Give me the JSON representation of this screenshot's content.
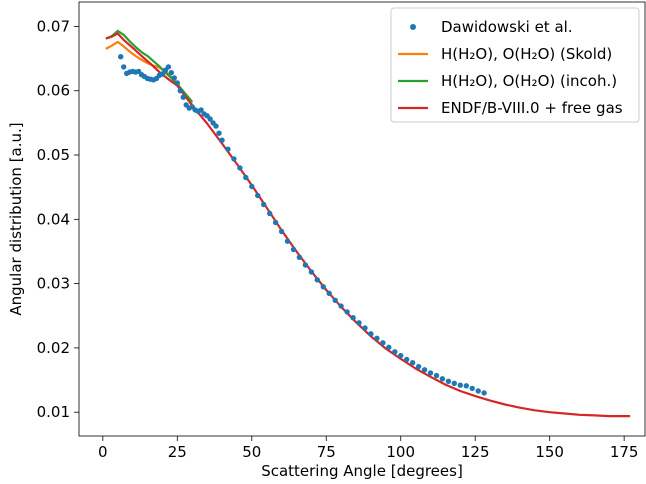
{
  "chart_data": {
    "type": "line",
    "title": "",
    "xlabel": "Scattering Angle [degrees]",
    "ylabel": "Angular distribution [a.u.]",
    "xlim": [
      -8,
      182
    ],
    "ylim": [
      0.0063,
      0.0738
    ],
    "xticks": [
      0,
      25,
      50,
      75,
      100,
      125,
      150,
      175
    ],
    "yticks": [
      0.01,
      0.02,
      0.03,
      0.04,
      0.05,
      0.06,
      0.07
    ],
    "ytick_labels": [
      "0.01",
      "0.02",
      "0.03",
      "0.04",
      "0.05",
      "0.06",
      "0.07"
    ],
    "grid": false,
    "legend_position": "top-right",
    "series": [
      {
        "name": "Dawidowski et al.",
        "style": "scatter",
        "color": "#1f77b4",
        "x": [
          6,
          7,
          8,
          9,
          10,
          11,
          12,
          13,
          14,
          15,
          16,
          17,
          18,
          19,
          20,
          21,
          22,
          23,
          24,
          25,
          26,
          27,
          28,
          29,
          30,
          31,
          32,
          33,
          34,
          35,
          36,
          37,
          38,
          39,
          40,
          42,
          44,
          46,
          48,
          50,
          52,
          54,
          56,
          58,
          60,
          62,
          64,
          66,
          68,
          70,
          72,
          74,
          76,
          78,
          80,
          82,
          84,
          86,
          88,
          90,
          92,
          94,
          96,
          98,
          100,
          102,
          104,
          106,
          108,
          110,
          112,
          114,
          116,
          118,
          120,
          122,
          124,
          126,
          128
        ],
        "y": [
          0.0653,
          0.0637,
          0.0627,
          0.0629,
          0.063,
          0.0629,
          0.063,
          0.0625,
          0.0622,
          0.0619,
          0.0618,
          0.0617,
          0.0619,
          0.0624,
          0.0626,
          0.0632,
          0.0637,
          0.0628,
          0.062,
          0.0612,
          0.06,
          0.059,
          0.0578,
          0.0573,
          0.0575,
          0.057,
          0.0568,
          0.057,
          0.0564,
          0.0561,
          0.0556,
          0.055,
          0.0545,
          0.0534,
          0.0523,
          0.0509,
          0.0494,
          0.048,
          0.0465,
          0.0451,
          0.0437,
          0.0423,
          0.0409,
          0.0395,
          0.0381,
          0.0366,
          0.0353,
          0.0341,
          0.0329,
          0.0318,
          0.0306,
          0.0295,
          0.0285,
          0.0274,
          0.0265,
          0.0256,
          0.0247,
          0.0239,
          0.0231,
          0.0222,
          0.0215,
          0.0208,
          0.0201,
          0.0194,
          0.0188,
          0.0182,
          0.0177,
          0.0171,
          0.0166,
          0.0161,
          0.0157,
          0.0152,
          0.0148,
          0.0145,
          0.0142,
          0.0141,
          0.0137,
          0.0133,
          0.013
        ]
      },
      {
        "name": "H(H2O), O(H2O) (Skold)",
        "legend_label": "H(H₂O), O(H₂O) (Skold)",
        "style": "line",
        "color": "#ff7f0e",
        "x": [
          1,
          3,
          5,
          7,
          9,
          11,
          13,
          15,
          17,
          19,
          21,
          23,
          25,
          30
        ],
        "y": [
          0.0665,
          0.067,
          0.0676,
          0.0669,
          0.0661,
          0.0654,
          0.0648,
          0.0643,
          0.0639,
          0.0636,
          0.063,
          0.0621,
          0.0611,
          0.058
        ]
      },
      {
        "name": "H(H2O), O(H2O) (incoh.)",
        "legend_label": "H(H₂O), O(H₂O) (incoh.)",
        "style": "line",
        "color": "#2ca02c",
        "x": [
          1,
          3,
          5,
          7,
          9,
          11,
          13,
          15,
          17,
          19,
          21,
          23,
          25,
          30
        ],
        "y": [
          0.0681,
          0.0685,
          0.0693,
          0.0687,
          0.0677,
          0.0668,
          0.066,
          0.0654,
          0.0646,
          0.0638,
          0.0628,
          0.062,
          0.061,
          0.0583
        ]
      },
      {
        "name": "ENDF/B-VIII.0 + free gas",
        "style": "line",
        "color": "#d62728",
        "x": [
          1,
          3,
          5,
          7,
          10,
          13,
          16,
          19,
          22,
          25,
          30,
          35,
          40,
          45,
          50,
          55,
          60,
          65,
          70,
          75,
          80,
          85,
          90,
          95,
          100,
          105,
          110,
          115,
          120,
          125,
          130,
          135,
          140,
          145,
          150,
          155,
          160,
          165,
          170,
          175,
          177
        ],
        "y": [
          0.0681,
          0.0684,
          0.0689,
          0.0679,
          0.0667,
          0.0654,
          0.0642,
          0.0629,
          0.0618,
          0.0608,
          0.0577,
          0.0549,
          0.0518,
          0.0486,
          0.0453,
          0.0418,
          0.0383,
          0.035,
          0.0319,
          0.029,
          0.0264,
          0.024,
          0.0218,
          0.0199,
          0.0183,
          0.0168,
          0.0155,
          0.0143,
          0.0133,
          0.0125,
          0.0118,
          0.0112,
          0.0107,
          0.0103,
          0.01,
          0.0098,
          0.0096,
          0.0095,
          0.0094,
          0.0094,
          0.0094
        ]
      }
    ]
  }
}
